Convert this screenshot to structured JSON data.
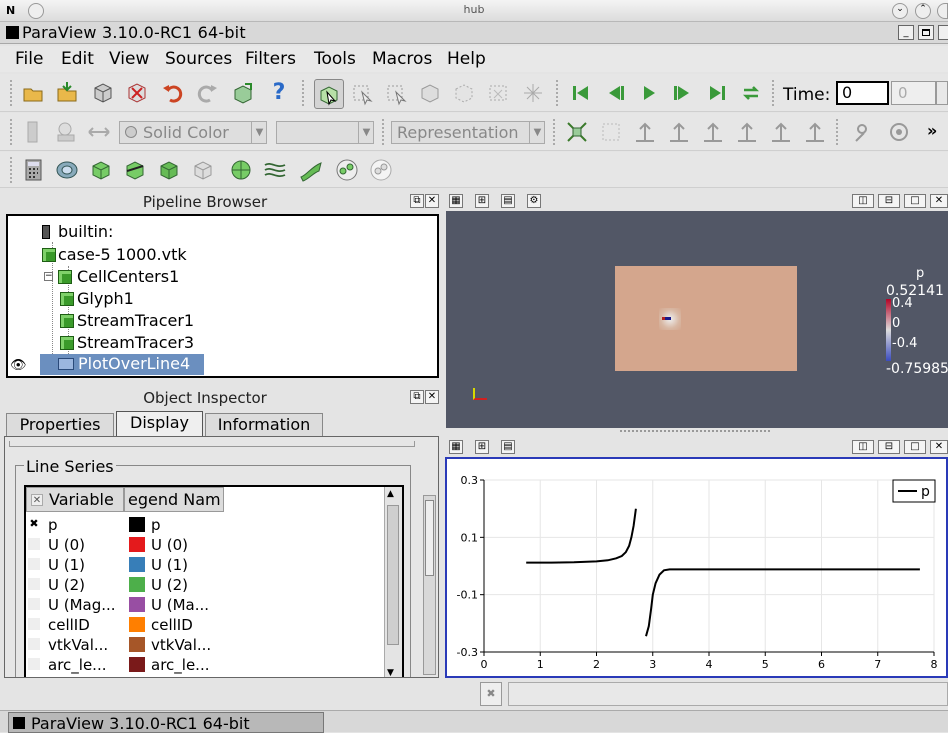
{
  "window": {
    "host_title": "hub",
    "app_title": "ParaView 3.10.0-RC1 64-bit"
  },
  "menu": [
    "File",
    "Edit",
    "View",
    "Sources",
    "Filters",
    "Tools",
    "Macros",
    "Help"
  ],
  "toolbar": {
    "time_label": "Time:",
    "time_value": "0",
    "time_index": "0",
    "color_by": "Solid Color",
    "representation": "Representation"
  },
  "pipeline": {
    "title": "Pipeline Browser",
    "items": [
      "builtin:",
      "case-5 1000.vtk",
      "CellCenters1",
      "Glyph1",
      "StreamTracer1",
      "StreamTracer3",
      "PlotOverLine4"
    ]
  },
  "inspector": {
    "title": "Object Inspector",
    "tabs": [
      "Properties",
      "Display",
      "Information"
    ],
    "group_label": "Line Series",
    "col_variable": "Variable",
    "col_legend": "egend Nam",
    "rows": [
      {
        "checked": true,
        "variable": "p",
        "legend": "p",
        "color": "#000000"
      },
      {
        "checked": false,
        "variable": "U (0)",
        "legend": "U (0)",
        "color": "#e41a1c"
      },
      {
        "checked": false,
        "variable": "U (1)",
        "legend": "U (1)",
        "color": "#377eb8"
      },
      {
        "checked": false,
        "variable": "U (2)",
        "legend": "U (2)",
        "color": "#4daf4a"
      },
      {
        "checked": false,
        "variable": "U (Mag...",
        "legend": "U (Ma...",
        "color": "#984ea3"
      },
      {
        "checked": false,
        "variable": "cellID",
        "legend": "cellID",
        "color": "#ff7f00"
      },
      {
        "checked": false,
        "variable": "vtkVal...",
        "legend": "vtkVal...",
        "color": "#a65628"
      },
      {
        "checked": false,
        "variable": "arc_le...",
        "legend": "arc_le...",
        "color": "#7a1a1a"
      }
    ]
  },
  "render_view": {
    "background": "#525766",
    "colorbar": {
      "title": "p",
      "max": "0.52141",
      "ticks": [
        "0.4",
        "0",
        "-0.4"
      ],
      "min": "-0.759858"
    }
  },
  "chart_data": {
    "type": "line",
    "xlim": [
      0,
      8
    ],
    "ylim": [
      -0.3,
      0.3
    ],
    "x_ticks": [
      "0",
      "1",
      "2",
      "3",
      "4",
      "5",
      "6",
      "7",
      "8"
    ],
    "y_ticks": [
      "0.3",
      "0.1",
      "-0.1",
      "-0.3"
    ],
    "grid": true,
    "legend_position": "top-right",
    "series": [
      {
        "name": "p",
        "color": "#000000",
        "segments": [
          [
            [
              0.75,
              0.012
            ],
            [
              1.2,
              0.012
            ],
            [
              1.6,
              0.013
            ],
            [
              2.0,
              0.016
            ],
            [
              2.2,
              0.02
            ],
            [
              2.35,
              0.027
            ],
            [
              2.45,
              0.035
            ],
            [
              2.52,
              0.048
            ],
            [
              2.58,
              0.07
            ],
            [
              2.62,
              0.1
            ],
            [
              2.66,
              0.14
            ],
            [
              2.7,
              0.2
            ]
          ],
          [
            [
              2.88,
              -0.245
            ],
            [
              2.93,
              -0.21
            ],
            [
              2.97,
              -0.15
            ],
            [
              3.0,
              -0.1
            ],
            [
              3.05,
              -0.06
            ],
            [
              3.12,
              -0.03
            ],
            [
              3.2,
              -0.015
            ],
            [
              3.3,
              -0.012
            ],
            [
              4.5,
              -0.012
            ],
            [
              6.0,
              -0.012
            ],
            [
              7.75,
              -0.012
            ]
          ]
        ]
      }
    ]
  },
  "status_bar": {
    "taskbar_title": "ParaView 3.10.0-RC1 64-bit"
  }
}
